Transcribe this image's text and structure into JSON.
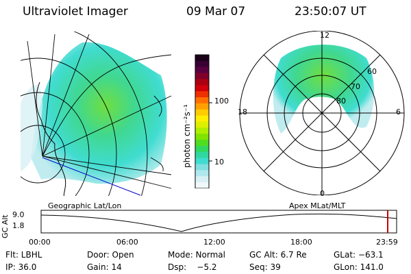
{
  "header": {
    "instrument": "Ultraviolet Imager",
    "date": "09 Mar 07",
    "time": "23:50:07 UT"
  },
  "colorbar": {
    "unit_label": "photon cm⁻²s⁻¹",
    "ticks": [
      "100",
      "10"
    ],
    "colors": [
      "#1a0018",
      "#3a0033",
      "#5a0040",
      "#80002a",
      "#aa0010",
      "#d0000a",
      "#ee3000",
      "#ff7000",
      "#ffa000",
      "#ffcc00",
      "#ffee00",
      "#ddf000",
      "#b0ee00",
      "#80e400",
      "#50dc20",
      "#30d860",
      "#30d8a0",
      "#40dcd0",
      "#80e0e0",
      "#b0e8ee",
      "#d8f0f4",
      "#f0f8fa"
    ]
  },
  "left_panel": {
    "label": "Geographic Lat/Lon"
  },
  "right_panel": {
    "label": "Apex MLat/MLT",
    "mlt_labels": {
      "top": "12",
      "bottom": "0",
      "left": "18",
      "right": "6"
    },
    "lat_labels": [
      "60",
      "70",
      "80"
    ]
  },
  "altitude_plot": {
    "axis_label": "GC Alt",
    "ylabels": [
      "9.0",
      "1.8"
    ],
    "xlabels": [
      "00:00",
      "06:00",
      "12:00",
      "18:00",
      "23:59"
    ],
    "marker_color": "#cc0000"
  },
  "info": {
    "filter": "Flt: LBHL",
    "door": "Door: Open",
    "mode": "Mode: Normal",
    "gc_alt": "GC Alt: 6.7 Re",
    "glat": "GLat: −63.1",
    "ip": "IP: 36.0",
    "gain": "Gain: 14",
    "dsp": "Dsp:    −5.2",
    "seq": "Seq: 39",
    "glon": "GLon: 141.0"
  }
}
